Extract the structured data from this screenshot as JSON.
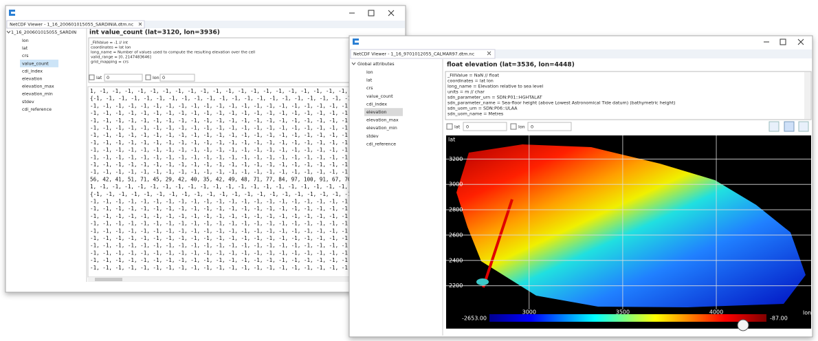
{
  "back_window": {
    "title": "NetCDF Viewer - 1_16_200601015055_SARDINIA.dtm.nc",
    "tree": {
      "root": "1_16_200601015055_SARDIN",
      "items": [
        "lon",
        "lat",
        "crs",
        "value_count",
        "cdi_index",
        "elevation",
        "elevation_max",
        "elevation_min",
        "stdev",
        "cdi_reference"
      ]
    },
    "variable_header": "int value_count (lat=3120, lon=3936)",
    "attributes": [
      "_FillValue = -1 // int",
      "coordinates = lat lon",
      "long_name = Number of values used to compute the resulting elevation over the cell",
      "valid_range = [0, 2147483646]",
      "grid_mapping = crs"
    ],
    "controls": {
      "lat_label": "lat",
      "lat_value": "0",
      "lon_label": "lon",
      "lon_value": "0"
    },
    "data_rows": [
      "1, -1, -1, -1, -1, -1, -1, -1, -1, -1, -1, -1, -1, -1, -1, -1, -1, -1, -1, -1, -1, -1, -1,",
      "{-1, -1, -1, -1, -1, -1, -1, -1, -1, -1, -1, -1, -1, -1, -1, -1, -1, -1, -1, -1, -1, -1, -1,",
      "-1, -1, -1, -1, -1, -1, -1, -1, -1, -1, -1, -1, -1, -1, -1, -1, -1, -1, -1, -1, -1, -1, -1,",
      "-1, -1, -1, -1, -1, -1, -1, -1, -1, -1, -1, -1, -1, -1, -1, -1, -1, -1, -1, -1, -1, -1, -1,",
      "-1, -1, -1, -1, -1, -1, -1, -1, -1, -1, -1, -1, -1, -1, -1, -1, -1, -1, -1, -1, -1, -1, -1,",
      "-1, -1, -1, -1, -1, -1, -1, -1, -1, -1, -1, -1, -1, -1, -1, -1, -1, -1, -1, -1, -1, -1, -1,",
      "-1, -1, -1, -1, -1, -1, -1, -1, -1, -1, -1, -1, -1, -1, -1, -1, -1, -1, -1, -1, -1, -1, -1,",
      "-1, -1, -1, -1, -1, -1, -1, -1, -1, -1, -1, -1, -1, -1, -1, -1, -1, -1, -1, -1, -1, -1, -1,",
      "-1, -1, -1, -1, -1, -1, -1, -1, -1, -1, -1, -1, -1, -1, -1, -1, -1, -1, -1, -1, -1, -1, -1,",
      "-1, -1, -1, -1, -1, -1, -1, -1, -1, -1, -1, -1, -1, -1, -1, -1, -1, -1, -1, -1, -1, -1, -1,",
      "-1, -1, -1, -1, -1, -1, -1, -1, -1, -1, -1, -1, -1, -1, -1, -1, -1, -1, -1, -1, -1, -1, -1,",
      "-1, -1, -1, -1, -1, -1, -1, -1, -1, -1, -1, -1, -1, -1, -1, -1, -1, -1, -1, -1, -1, -1, -1,",
      "56, 42, 41, 51, 71, 45, 29, 42, 40, 35, 42, 49, 48, 71, 77, 84, 97, 100, 91, 67, 70,",
      "1, -1, -1, -1, -1, -1, -1, -1, -1, -1, -1, -1, -1, -1, -1, -1, -1, -1, -1, -1, -1, -1, -1,",
      "{-1, -1, -1, -1, -1, -1, -1, -1, -1, -1, -1, -1, -1, -1, -1, -1, -1, -1, -1, -1, -1, -1, -1,",
      "-1, -1, -1, -1, -1, -1, -1, -1, -1, -1, -1, -1, -1, -1, -1, -1, -1, -1, -1, -1, -1, -1, -1,",
      "-1, -1, -1, -1, -1, -1, -1, -1, -1, -1, -1, -1, -1, -1, -1, -1, -1, -1, -1, -1, -1, -1, -1,",
      "-1, -1, -1, -1, -1, -1, -1, -1, -1, -1, -1, -1, -1, -1, -1, -1, -1, -1, -1, -1, -1, -1, -1,",
      "-1, -1, -1, -1, -1, -1, -1, -1, -1, -1, -1, -1, -1, -1, -1, -1, -1, -1, -1, -1, -1, -1, -1,",
      "-1, -1, -1, -1, -1, -1, -1, -1, -1, -1, -1, -1, -1, -1, -1, -1, -1, -1, -1, -1, -1, -1, -1,",
      "-1, -1, -1, -1, -1, -1, -1, -1, -1, -1, -1, -1, -1, -1, -1, -1, -1, -1, -1, -1, -1, -1, -1,",
      "-1, -1, -1, -1, -1, -1, -1, -1, -1, -1, -1, -1, -1, -1, -1, -1, -1, -1, -1, -1, -1, -1, -1,",
      "-1, -1, -1, -1, -1, -1, -1, -1, -1, -1, -1, -1, -1, -1, -1, -1, -1, -1, -1, -1, -1, -1, -1,",
      "-1, -1, -1, -1, -1, -1, -1, -1, -1, -1, -1, -1, -1, -1, -1, -1, -1, -1, -1, -1, -1, -1, -1,",
      "-1, -1, -1, -1, -1, -1, -1, -1, -1, -1, -1, -1, -1, -1, -1, -1, -1, -1, -1, -1, -1, -1, -1,"
    ]
  },
  "front_window": {
    "title": "NetCDF Viewer - 1_16_9701012055_CALMAR97.dtm.nc",
    "tree": {
      "root": "Global attributes",
      "items": [
        "lon",
        "lat",
        "crs",
        "value_count",
        "cdi_index",
        "elevation",
        "elevation_max",
        "elevation_min",
        "stdev",
        "cdi_reference"
      ]
    },
    "variable_header": "float elevation (lat=3536, lon=4448)",
    "attributes": [
      "_FillValue = NaN // float",
      "coordinates = lat lon",
      "long_name = Elevation relative to sea level",
      "units = m // char",
      "sdn_parameter_urn = SDN:P01::HGHTALAT",
      "sdn_parameter_name = Sea-floor height (above Lowest Astronomical Tide datum) (bathymetric height)",
      "sdn_uom_urn = SDN:P06::ULAA",
      "sdn_uom_name = Metres"
    ],
    "controls": {
      "lat_label": "lat",
      "lat_value": "0",
      "lon_label": "lon",
      "lon_value": "0"
    },
    "plot": {
      "y_label": "lat",
      "x_label": "lon",
      "xlim": [
        2560,
        4470
      ],
      "ylim": [
        2030,
        3370
      ],
      "xticks": [
        3000,
        3500,
        4000
      ],
      "yticks": [
        2200,
        2400,
        2600,
        2800,
        3000,
        3200
      ],
      "colorbar": {
        "min_label": "-2653.00",
        "max_label": "-87.00"
      }
    }
  }
}
